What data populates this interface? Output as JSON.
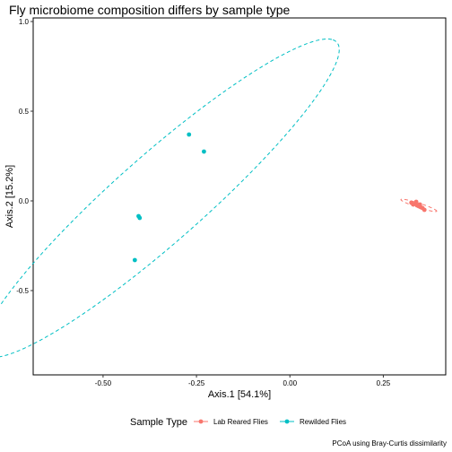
{
  "chart_data": {
    "type": "scatter",
    "title": "Fly microbiome composition differs by sample type",
    "xlabel": "Axis.1   [54.1%]",
    "ylabel": "Axis.2   [15.2%]",
    "caption": "PCoA using Bray-Curtis dissimilarity",
    "xlim": [
      -0.687,
      0.417
    ],
    "ylim": [
      -0.97,
      1.02
    ],
    "x_ticks": [
      -0.5,
      -0.25,
      0.0,
      0.25
    ],
    "x_tick_labels": [
      "-0.50",
      "-0.25",
      "0.00",
      "0.25"
    ],
    "y_ticks": [
      -0.5,
      0.0,
      0.5,
      1.0
    ],
    "y_tick_labels": [
      "-0.5",
      "0.0",
      "0.5",
      "1.0"
    ],
    "grid": false,
    "legend": {
      "title": "Sample Type",
      "position": "bottom",
      "entries": [
        "Lab Reared Flies",
        "Rewilded Flies"
      ]
    },
    "series": [
      {
        "name": "Lab Reared Flies",
        "color": "#F8766D",
        "points": [
          [
            0.325,
            -0.01
          ],
          [
            0.33,
            -0.02
          ],
          [
            0.335,
            -0.015
          ],
          [
            0.34,
            -0.025
          ],
          [
            0.345,
            -0.03
          ],
          [
            0.338,
            -0.005
          ],
          [
            0.35,
            -0.035
          ],
          [
            0.355,
            -0.04
          ],
          [
            0.348,
            -0.02
          ],
          [
            0.36,
            -0.05
          ]
        ],
        "ellipse": {
          "cx": 0.345,
          "cy": -0.025,
          "rx": 0.058,
          "ry": 0.0105,
          "angle_deg": -35
        }
      },
      {
        "name": "Rewilded Flies",
        "color": "#00BFC4",
        "points": [
          [
            -0.27,
            0.37
          ],
          [
            -0.23,
            0.275
          ],
          [
            -0.405,
            -0.085
          ],
          [
            -0.402,
            -0.095
          ],
          [
            -0.415,
            -0.33
          ]
        ],
        "ellipse": {
          "cx": -0.347,
          "cy": 0.015,
          "rx": 0.997,
          "ry": 0.1535,
          "angle_deg": 62.57
        }
      }
    ]
  }
}
